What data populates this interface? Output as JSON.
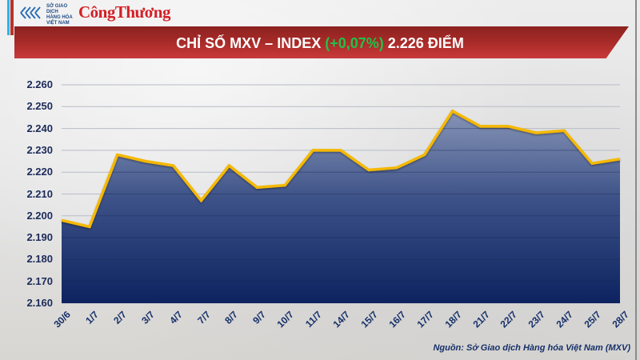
{
  "header": {
    "logo_mxv_text": [
      "SỞ GIAO DỊCH",
      "HÀNG HÓA",
      "VIỆT NAM"
    ],
    "logo_congthuong": "CôngThương",
    "title_prefix": "CHỈ SỐ MXV – INDEX ",
    "title_change": "(+0,07%)",
    "title_suffix": " 2.226 ĐIỂM"
  },
  "colors": {
    "banner": "#a82b28",
    "change_positive": "#1fc24a",
    "line": "#f5b800",
    "area_top": "#6f7fa6",
    "area_bottom": "#0d2360",
    "axis_text": "#1b2a5a",
    "gridline": "#b8bcc8"
  },
  "chart_data": {
    "type": "area",
    "title": "CHỈ SỐ MXV – INDEX (+0,07%) 2.226 ĐIỂM",
    "xlabel": "",
    "ylabel": "",
    "categories": [
      "30/6",
      "1/7",
      "2/7",
      "3/7",
      "4/7",
      "7/7",
      "8/7",
      "9/7",
      "10/7",
      "11/7",
      "14/7",
      "15/7",
      "16/7",
      "17/7",
      "18/7",
      "21/7",
      "22/7",
      "23/7",
      "24/7",
      "25/7",
      "28/7"
    ],
    "values": [
      2198,
      2195,
      2228,
      2225,
      2223,
      2207,
      2223,
      2213,
      2214,
      2230,
      2230,
      2221,
      2222,
      2228,
      2248,
      2241,
      2241,
      2238,
      2239,
      2224,
      2226
    ],
    "ylim": [
      2160,
      2260
    ],
    "yticks": [
      2260,
      2250,
      2240,
      2230,
      2220,
      2210,
      2200,
      2190,
      2180,
      2170,
      2160
    ],
    "ytick_labels": [
      "2.260",
      "2.250",
      "2.240",
      "2.230",
      "2.220",
      "2.210",
      "2.200",
      "2.190",
      "2.180",
      "2.170",
      "2.160"
    ],
    "grid": true,
    "legend": null
  },
  "footer": {
    "source": "Nguồn: Sở Giao dịch Hàng hóa Việt Nam (MXV)"
  }
}
